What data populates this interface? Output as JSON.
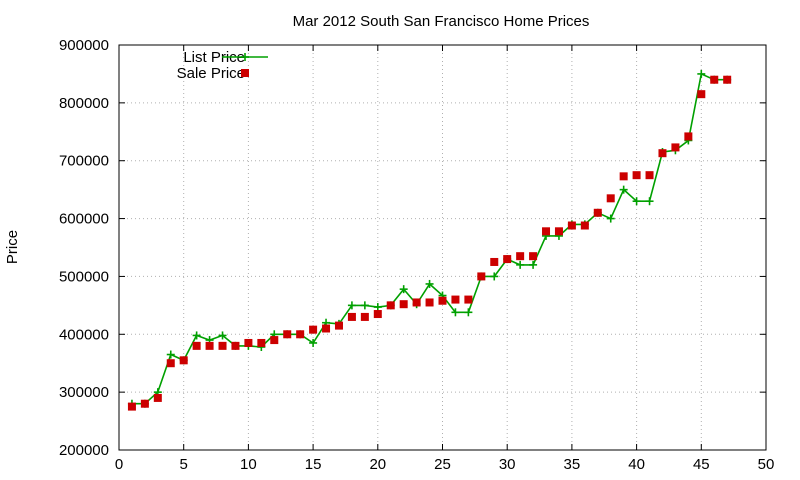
{
  "chart_data": {
    "type": "scatter",
    "title": "Mar 2012 South San Francisco Home Prices",
    "xlabel": "",
    "ylabel": "Price",
    "xlim": [
      0,
      50
    ],
    "ylim": [
      200000,
      900000
    ],
    "xticks": [
      0,
      5,
      10,
      15,
      20,
      25,
      30,
      35,
      40,
      45,
      50
    ],
    "yticks": [
      200000,
      300000,
      400000,
      500000,
      600000,
      700000,
      800000,
      900000
    ],
    "grid": true,
    "legend_position": "top-left",
    "series": [
      {
        "name": "List Price",
        "style": "line-with-plus-markers",
        "color": "#00a000",
        "x": [
          1,
          2,
          3,
          4,
          5,
          6,
          7,
          8,
          9,
          10,
          11,
          12,
          13,
          14,
          15,
          16,
          17,
          18,
          19,
          20,
          21,
          22,
          23,
          24,
          25,
          26,
          27,
          28,
          29,
          30,
          31,
          32,
          33,
          34,
          35,
          36,
          37,
          38,
          39,
          40,
          41,
          42,
          43,
          44,
          45,
          46,
          47
        ],
        "y": [
          280000,
          280000,
          300000,
          365000,
          355000,
          398000,
          390000,
          398000,
          380000,
          380000,
          378000,
          400000,
          400000,
          400000,
          385000,
          420000,
          418000,
          450000,
          450000,
          447000,
          450000,
          478000,
          452000,
          487000,
          467000,
          438000,
          438000,
          500000,
          500000,
          530000,
          520000,
          520000,
          570000,
          570000,
          590000,
          590000,
          610000,
          600000,
          650000,
          630000,
          630000,
          715000,
          718000,
          735000,
          850000,
          840000,
          840000
        ]
      },
      {
        "name": "Sale Price",
        "style": "square-markers",
        "color": "#cc0000",
        "x": [
          1,
          2,
          3,
          4,
          5,
          6,
          7,
          8,
          9,
          10,
          11,
          12,
          13,
          14,
          15,
          16,
          17,
          18,
          19,
          20,
          21,
          22,
          23,
          24,
          25,
          26,
          27,
          28,
          29,
          30,
          31,
          32,
          33,
          34,
          35,
          36,
          37,
          38,
          39,
          40,
          41,
          42,
          43,
          44,
          45,
          46,
          47
        ],
        "y": [
          275000,
          280000,
          290000,
          350000,
          355000,
          380000,
          380000,
          380000,
          380000,
          385000,
          385000,
          390000,
          400000,
          400000,
          408000,
          410000,
          415000,
          430000,
          430000,
          435000,
          450000,
          452000,
          455000,
          455000,
          458000,
          460000,
          460000,
          500000,
          525000,
          530000,
          535000,
          535000,
          578000,
          578000,
          588000,
          588000,
          610000,
          635000,
          673000,
          675000,
          675000,
          713000,
          723000,
          742000,
          815000,
          840000,
          840000
        ]
      }
    ]
  }
}
